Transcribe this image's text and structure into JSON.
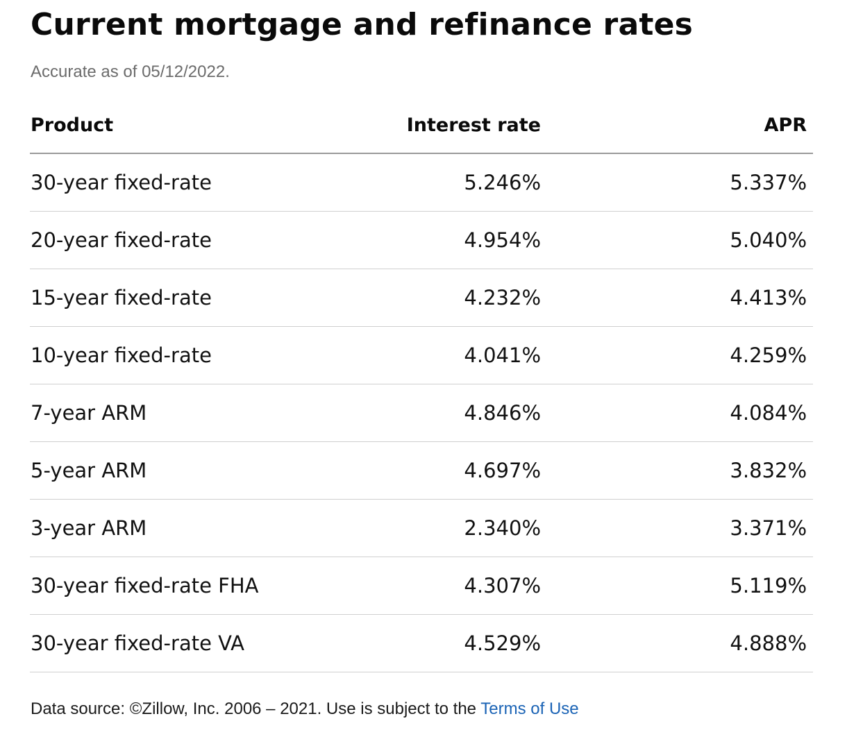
{
  "header": {
    "title": "Current mortgage and refinance rates",
    "subtitle": "Accurate as of 05/12/2022."
  },
  "table": {
    "columns": [
      "Product",
      "Interest rate",
      "APR"
    ],
    "rows": [
      {
        "product": "30-year fixed-rate",
        "interest_rate": "5.246%",
        "apr": "5.337%"
      },
      {
        "product": "20-year fixed-rate",
        "interest_rate": "4.954%",
        "apr": "5.040%"
      },
      {
        "product": "15-year fixed-rate",
        "interest_rate": "4.232%",
        "apr": "4.413%"
      },
      {
        "product": "10-year fixed-rate",
        "interest_rate": "4.041%",
        "apr": "4.259%"
      },
      {
        "product": "7-year ARM",
        "interest_rate": "4.846%",
        "apr": "4.084%"
      },
      {
        "product": "5-year ARM",
        "interest_rate": "4.697%",
        "apr": "3.832%"
      },
      {
        "product": "3-year ARM",
        "interest_rate": "2.340%",
        "apr": "3.371%"
      },
      {
        "product": "30-year fixed-rate FHA",
        "interest_rate": "4.307%",
        "apr": "5.119%"
      },
      {
        "product": "30-year fixed-rate VA",
        "interest_rate": "4.529%",
        "apr": "4.888%"
      }
    ]
  },
  "footer": {
    "text": "Data source: ©Zillow, Inc. 2006 – 2021. Use is subject to the ",
    "link_label": "Terms of Use"
  },
  "colors": {
    "text": "#111111",
    "subtitle": "#6b6b6b",
    "link": "#1a63b5",
    "header_rule": "#9a9a9a",
    "row_rule": "#cfcfcf"
  }
}
